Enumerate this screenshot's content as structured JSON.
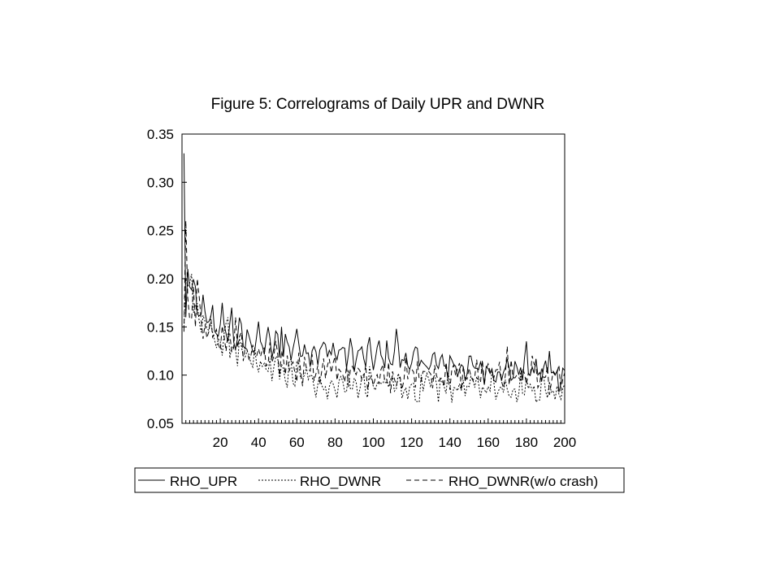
{
  "chart_data": {
    "type": "line",
    "title": "Figure 5: Correlograms of Daily UPR and DWNR",
    "xlabel": "",
    "ylabel": "",
    "xlim": [
      0,
      200
    ],
    "ylim": [
      0.05,
      0.35
    ],
    "x_ticks": [
      "20",
      "40",
      "60",
      "80",
      "100",
      "120",
      "140",
      "160",
      "180",
      "200"
    ],
    "y_ticks": [
      "0.05",
      "0.10",
      "0.15",
      "0.20",
      "0.25",
      "0.30",
      "0.35"
    ],
    "grid": false,
    "legend_position": "bottom",
    "series": [
      {
        "name": "RHO_UPR",
        "dash": "solid",
        "anchors": [
          [
            1,
            0.33
          ],
          [
            2,
            0.16
          ],
          [
            3,
            0.21
          ],
          [
            5,
            0.19
          ],
          [
            8,
            0.17
          ],
          [
            12,
            0.16
          ],
          [
            16,
            0.155
          ],
          [
            20,
            0.15
          ],
          [
            25,
            0.145
          ],
          [
            30,
            0.14
          ],
          [
            40,
            0.135
          ],
          [
            50,
            0.13
          ],
          [
            60,
            0.13
          ],
          [
            70,
            0.125
          ],
          [
            80,
            0.125
          ],
          [
            90,
            0.12
          ],
          [
            100,
            0.12
          ],
          [
            110,
            0.12
          ],
          [
            120,
            0.115
          ],
          [
            140,
            0.11
          ],
          [
            160,
            0.105
          ],
          [
            180,
            0.105
          ],
          [
            200,
            0.1
          ]
        ],
        "spikes": [
          [
            21,
            0.175
          ],
          [
            26,
            0.17
          ],
          [
            52,
            0.15
          ],
          [
            60,
            0.148
          ],
          [
            112,
            0.148
          ],
          [
            140,
            0.12
          ],
          [
            180,
            0.135
          ],
          [
            192,
            0.125
          ]
        ]
      },
      {
        "name": "RHO_DWNR",
        "dash": "dotted",
        "anchors": [
          [
            1,
            0.15
          ],
          [
            2,
            0.2
          ],
          [
            4,
            0.185
          ],
          [
            8,
            0.165
          ],
          [
            12,
            0.15
          ],
          [
            16,
            0.14
          ],
          [
            20,
            0.135
          ],
          [
            25,
            0.13
          ],
          [
            30,
            0.12
          ],
          [
            40,
            0.11
          ],
          [
            50,
            0.105
          ],
          [
            60,
            0.1
          ],
          [
            70,
            0.095
          ],
          [
            80,
            0.09
          ],
          [
            90,
            0.09
          ],
          [
            100,
            0.09
          ],
          [
            110,
            0.09
          ],
          [
            120,
            0.088
          ],
          [
            140,
            0.088
          ],
          [
            160,
            0.088
          ],
          [
            180,
            0.088
          ],
          [
            200,
            0.085
          ]
        ],
        "spikes": [
          [
            5,
            0.205
          ],
          [
            24,
            0.16
          ],
          [
            76,
            0.075
          ],
          [
            118,
            0.075
          ],
          [
            124,
            0.072
          ],
          [
            185,
            0.072
          ]
        ]
      },
      {
        "name": "RHO_DWNR(w/o crash)",
        "dash": "dashed",
        "anchors": [
          [
            1,
            0.145
          ],
          [
            2,
            0.26
          ],
          [
            3,
            0.18
          ],
          [
            6,
            0.17
          ],
          [
            10,
            0.155
          ],
          [
            14,
            0.145
          ],
          [
            20,
            0.14
          ],
          [
            25,
            0.135
          ],
          [
            30,
            0.13
          ],
          [
            40,
            0.12
          ],
          [
            50,
            0.115
          ],
          [
            60,
            0.11
          ],
          [
            70,
            0.105
          ],
          [
            80,
            0.105
          ],
          [
            90,
            0.1
          ],
          [
            100,
            0.1
          ],
          [
            110,
            0.1
          ],
          [
            120,
            0.1
          ],
          [
            140,
            0.1
          ],
          [
            160,
            0.1
          ],
          [
            180,
            0.1
          ],
          [
            200,
            0.095
          ]
        ],
        "spikes": [
          [
            8,
            0.2
          ],
          [
            28,
            0.16
          ],
          [
            170,
            0.13
          ],
          [
            183,
            0.12
          ]
        ]
      }
    ]
  }
}
